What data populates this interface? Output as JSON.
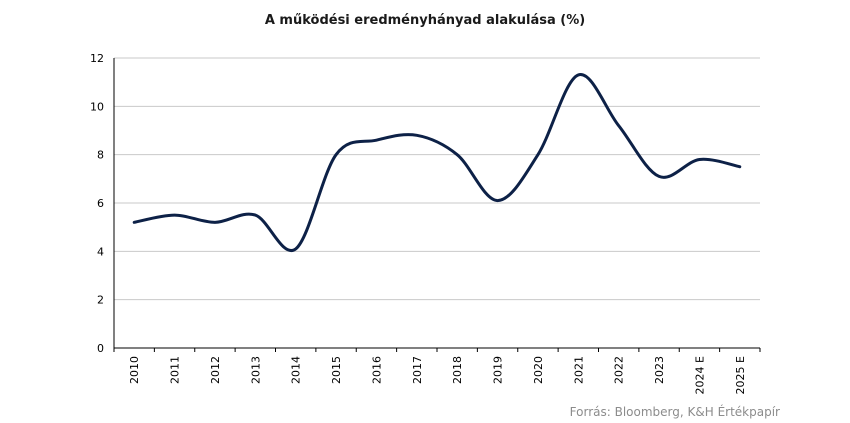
{
  "chart_data": {
    "type": "line",
    "title": "A működési eredményhányad  alakulása (%)",
    "categories": [
      "2010",
      "2011",
      "2012",
      "2013",
      "2014",
      "2015",
      "2016",
      "2017",
      "2018",
      "2019",
      "2020",
      "2021",
      "2022",
      "2023",
      "2024 E",
      "2025 E"
    ],
    "series": [
      {
        "values": [
          5.2,
          5.5,
          5.2,
          5.5,
          4.1,
          8.0,
          8.6,
          8.8,
          8.0,
          6.1,
          8.0,
          11.3,
          9.2,
          7.1,
          7.8,
          7.5
        ]
      }
    ],
    "ylim": [
      0,
      12
    ],
    "yticks": [
      0,
      2,
      4,
      6,
      8,
      10,
      12
    ],
    "grid": true,
    "legend": "none",
    "line_color": "#0d2147",
    "source": "Forrás: Bloomberg, K&H Értékpapír"
  }
}
